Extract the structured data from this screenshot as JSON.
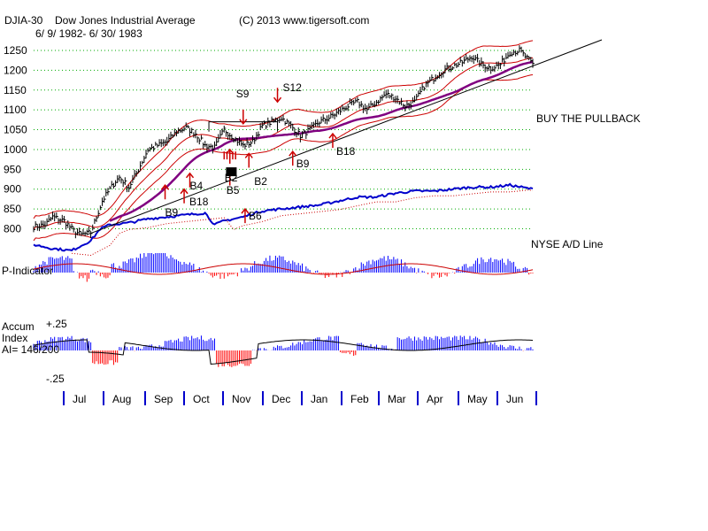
{
  "header": {
    "symbol": "DJIA-30",
    "name": "Dow Jones Industrial Average",
    "copyright": "(C) 2013 www.tigersoft.com",
    "date_range": "6/ 9/ 1982- 6/ 30/ 1983"
  },
  "chart_data": {
    "type": "line",
    "title": "DJIA-30 Dow Jones Industrial Average",
    "price_axis": {
      "ticks": [
        1250,
        1200,
        1150,
        1100,
        1050,
        1000,
        950,
        900,
        850,
        800
      ],
      "ylim": [
        770,
        1270
      ]
    },
    "months": [
      "Jul",
      "Aug",
      "Sep",
      "Oct",
      "Nov",
      "Dec",
      "Jan",
      "Feb",
      "Mar",
      "Apr",
      "May",
      "Jun"
    ],
    "series": [
      {
        "name": "DJIA close",
        "color": "#000000",
        "x": [
          0,
          6,
          10,
          16,
          21,
          25,
          30,
          36,
          40,
          43,
          45,
          50,
          55,
          60,
          65,
          70,
          75,
          80,
          85,
          90,
          95,
          100,
          105,
          110,
          115,
          120,
          125,
          130,
          135,
          140,
          145,
          150,
          155,
          160,
          165,
          170,
          175,
          180,
          185,
          190,
          195,
          200,
          205,
          210,
          215,
          220,
          225,
          230,
          235,
          240,
          245,
          250,
          255,
          262
        ],
        "y": [
          805,
          810,
          830,
          820,
          795,
          785,
          790,
          870,
          900,
          920,
          930,
          905,
          950,
          1000,
          1010,
          1020,
          1045,
          1055,
          1040,
          1010,
          1005,
          1050,
          1030,
          1010,
          1020,
          1060,
          1070,
          1080,
          1060,
          1035,
          1050,
          1070,
          1080,
          1095,
          1110,
          1120,
          1100,
          1120,
          1140,
          1130,
          1110,
          1120,
          1160,
          1180,
          1200,
          1210,
          1220,
          1235,
          1215,
          1205,
          1215,
          1245,
          1250,
          1215
        ]
      },
      {
        "name": "NYSE A/D Line",
        "color": "#0000cc",
        "x": [
          0,
          10,
          20,
          30,
          35,
          40,
          50,
          60,
          70,
          80,
          90,
          95,
          100,
          110,
          120,
          130,
          140,
          150,
          160,
          170,
          180,
          190,
          200,
          210,
          220,
          230,
          240,
          250,
          262
        ],
        "y": [
          760,
          750,
          745,
          770,
          800,
          810,
          815,
          825,
          830,
          835,
          840,
          810,
          820,
          830,
          845,
          850,
          855,
          860,
          870,
          880,
          880,
          890,
          895,
          895,
          900,
          905,
          905,
          910,
          900
        ]
      }
    ],
    "ylabel": "",
    "xlabel": ""
  },
  "labels": {
    "buy_the_pullback": "BUY THE PULLBACK",
    "nyse_ad_line": "NYSE A/D Line",
    "p_indicator": "P-Indicator",
    "accum": "Accum",
    "index": "Index",
    "ai": "AI= 146/200",
    "plus_25": "+.25",
    "minus_25": "-.25"
  },
  "signals": [
    {
      "label": "B9",
      "month_index": 2,
      "kind": "buy"
    },
    {
      "label": "B4",
      "month_index": 3,
      "kind": "buy"
    },
    {
      "label": "B18",
      "month_index": 3,
      "kind": "buy"
    },
    {
      "label": "S9",
      "month_index": 5,
      "kind": "sell"
    },
    {
      "label": "B2",
      "month_index": 5,
      "kind": "buy"
    },
    {
      "label": "B5",
      "month_index": 5,
      "kind": "buy"
    },
    {
      "label": "B6",
      "month_index": 5,
      "kind": "buy"
    },
    {
      "label": "B2",
      "month_index": 5,
      "kind": "buy"
    },
    {
      "label": "S12",
      "month_index": 6,
      "kind": "sell"
    },
    {
      "label": "B9",
      "month_index": 6,
      "kind": "buy"
    },
    {
      "label": "B18",
      "month_index": 7,
      "kind": "buy"
    }
  ],
  "colors": {
    "price": "#000000",
    "band": "#cc0000",
    "ma": "#800080",
    "ad": "#0000cc",
    "trend": "#000000",
    "grid": "#00aa00",
    "blue_hist": "#0000ff",
    "red_hist": "#ff0000"
  }
}
